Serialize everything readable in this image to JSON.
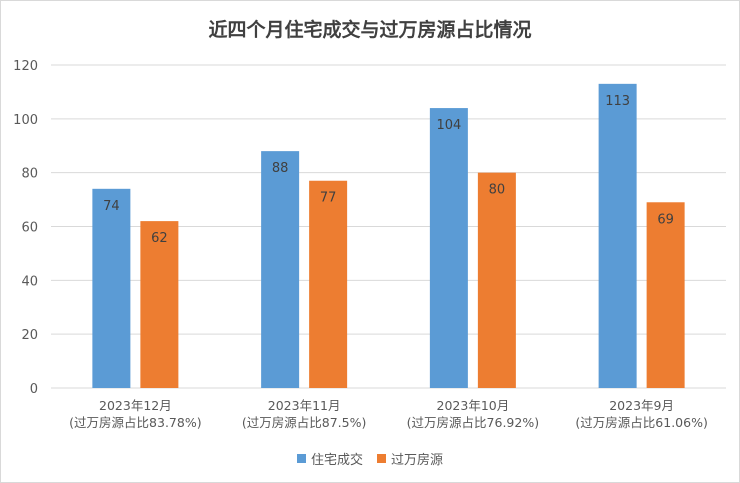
{
  "colors": {
    "series1": "#5b9bd5",
    "series2": "#ed7d31",
    "grid": "#d9d9d9",
    "text": "#595959"
  },
  "chart_data": {
    "type": "bar",
    "title": "近四个月住宅成交与过万房源占比情况",
    "categories": [
      [
        "2023年12月",
        "(过万房源占比83.78%)"
      ],
      [
        "2023年11月",
        "(过万房源占比87.5%)"
      ],
      [
        "2023年10月",
        "(过万房源占比76.92%)"
      ],
      [
        "2023年9月",
        "(过万房源占比61.06%)"
      ]
    ],
    "series": [
      {
        "name": "住宅成交",
        "values": [
          74,
          88,
          104,
          113
        ]
      },
      {
        "name": "过万房源",
        "values": [
          62,
          77,
          80,
          69
        ]
      }
    ],
    "ylim": [
      0,
      120
    ],
    "yticks": [
      0,
      20,
      40,
      60,
      80,
      100,
      120
    ],
    "grid": true,
    "legend_position": "bottom",
    "data_labels": true
  }
}
